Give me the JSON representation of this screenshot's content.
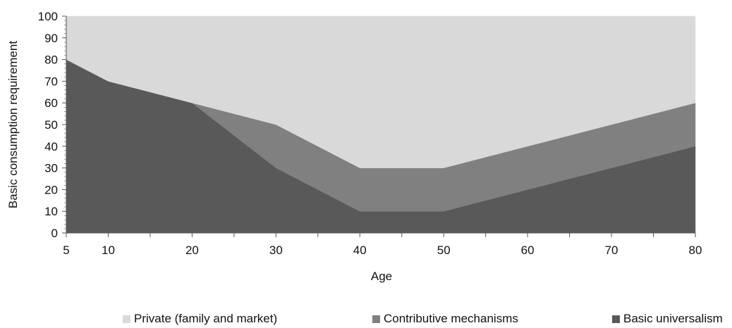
{
  "chart_data": {
    "type": "area",
    "stacked": true,
    "title": "",
    "xlabel": "Age",
    "ylabel": "Basic consumption requirement",
    "x": [
      5,
      10,
      20,
      30,
      40,
      50,
      60,
      70,
      80
    ],
    "x_ticks": [
      5,
      10,
      20,
      30,
      40,
      50,
      60,
      70,
      80
    ],
    "xlim": [
      5,
      80
    ],
    "ylim": [
      0,
      100
    ],
    "y_ticks": [
      0,
      10,
      20,
      30,
      40,
      50,
      60,
      70,
      80,
      90,
      100
    ],
    "grid": false,
    "legend_position": "bottom",
    "series": [
      {
        "name": "Basic universalism",
        "color": "#595959",
        "values": [
          80,
          70,
          60,
          30,
          10,
          10,
          20,
          30,
          40
        ]
      },
      {
        "name": "Contributive mechanisms",
        "color": "#808080",
        "values": [
          0,
          0,
          0,
          20,
          20,
          20,
          20,
          20,
          20
        ]
      },
      {
        "name": "Private (family and market)",
        "color": "#d9d9d9",
        "values": [
          20,
          30,
          40,
          50,
          70,
          70,
          60,
          50,
          40
        ]
      }
    ],
    "legend_order": [
      "Private (family and market)",
      "Contributive mechanisms",
      "Basic universalism"
    ]
  }
}
